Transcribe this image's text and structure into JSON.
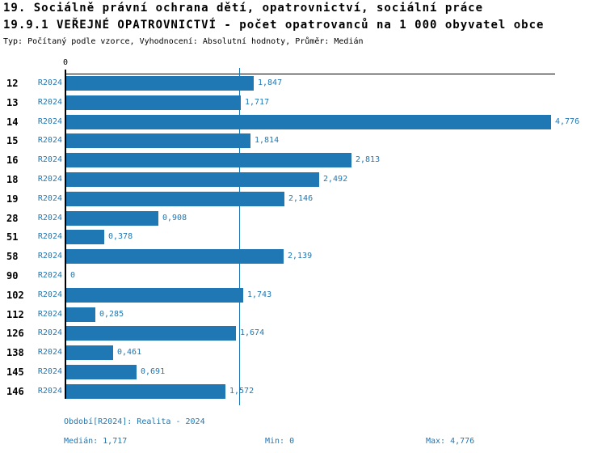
{
  "header": {
    "title_line1": "19. Sociálně právní ochrana dětí, opatrovnictví, sociální práce",
    "title_line2": "19.9.1 VEŘEJNÉ OPATROVNICTVÍ - počet opatrovanců na 1 000 obyvatel obce",
    "subtitle": "Typ: Počítaný podle vzorce, Vyhodnocení: Absolutní hodnoty, Průměr: Medián"
  },
  "chart_data": {
    "type": "bar",
    "orientation": "horizontal",
    "title": "19.9.1 VEŘEJNÉ OPATROVNICTVÍ - počet opatrovanců na 1 000 obyvatel obce",
    "categories": [
      "12",
      "13",
      "14",
      "15",
      "16",
      "18",
      "19",
      "28",
      "51",
      "58",
      "90",
      "102",
      "112",
      "126",
      "138",
      "145",
      "146"
    ],
    "period_label": "R2024",
    "values": [
      1.847,
      1.717,
      4.776,
      1.814,
      2.813,
      2.492,
      2.146,
      0.908,
      0.378,
      2.139,
      0,
      1.743,
      0.285,
      1.674,
      0.461,
      0.691,
      1.572
    ],
    "value_labels": [
      "1,847",
      "1,717",
      "4,776",
      "1,814",
      "2,813",
      "2,492",
      "2,146",
      "0,908",
      "0,378",
      "2,139",
      "0",
      "1,743",
      "0,285",
      "1,674",
      "0,461",
      "0,691",
      "1,572"
    ],
    "xlim": [
      0,
      4.8
    ],
    "x_tick_labels": [
      "0"
    ],
    "median_line_value": 1.717,
    "bar_color": "#1f77b4",
    "grid": false,
    "legend_position": "none"
  },
  "footer": {
    "period_info": "Období[R2024]: Realita - 2024",
    "median": "Medián: 1,717",
    "min": "Min: 0",
    "max": "Max: 4,776"
  }
}
